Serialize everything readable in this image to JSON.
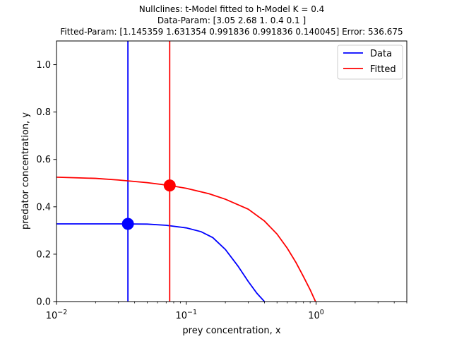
{
  "chart_data": {
    "type": "line",
    "title_lines": [
      "Nullclines: t-Model fitted to h-Model K = 0.4",
      "Data-Param: [3.05 2.68 1.   0.4  0.1 ]",
      "Fitted-Param: [1.145359 1.631354 0.991836 0.991836 0.140045] Error: 536.675"
    ],
    "xlabel": "prey concentration, x",
    "ylabel": "predator concentration, y",
    "x_scale": "log",
    "xlim": [
      0.01,
      5.0
    ],
    "ylim": [
      0.0,
      1.1
    ],
    "x_ticks": [
      {
        "value": 0.01,
        "base": "10",
        "exp": "−2"
      },
      {
        "value": 0.1,
        "base": "10",
        "exp": "−1"
      },
      {
        "value": 1,
        "base": "10",
        "exp": "0"
      }
    ],
    "y_ticks": [
      {
        "value": 0.0,
        "label": "0.0"
      },
      {
        "value": 0.2,
        "label": "0.2"
      },
      {
        "value": 0.4,
        "label": "0.4"
      },
      {
        "value": 0.6,
        "label": "0.6"
      },
      {
        "value": 0.8,
        "label": "0.8"
      },
      {
        "value": 1.0,
        "label": "1.0"
      }
    ],
    "legend_position": "top-right",
    "series": [
      {
        "name": "Data",
        "color": "#0000ff",
        "vertical_nullcline_x": 0.0355,
        "curve": [
          [
            0.01,
            0.328
          ],
          [
            0.02,
            0.328
          ],
          [
            0.03,
            0.328
          ],
          [
            0.05,
            0.327
          ],
          [
            0.07,
            0.322
          ],
          [
            0.1,
            0.311
          ],
          [
            0.13,
            0.295
          ],
          [
            0.16,
            0.27
          ],
          [
            0.2,
            0.22
          ],
          [
            0.25,
            0.15
          ],
          [
            0.3,
            0.085
          ],
          [
            0.35,
            0.035
          ],
          [
            0.4,
            0.0
          ]
        ],
        "equilibrium": [
          0.0355,
          0.328
        ]
      },
      {
        "name": "Fitted",
        "color": "#ff0000",
        "vertical_nullcline_x": 0.0745,
        "curve": [
          [
            0.01,
            0.525
          ],
          [
            0.02,
            0.52
          ],
          [
            0.03,
            0.513
          ],
          [
            0.05,
            0.502
          ],
          [
            0.0745,
            0.49
          ],
          [
            0.1,
            0.478
          ],
          [
            0.15,
            0.455
          ],
          [
            0.2,
            0.432
          ],
          [
            0.3,
            0.39
          ],
          [
            0.4,
            0.34
          ],
          [
            0.5,
            0.285
          ],
          [
            0.6,
            0.225
          ],
          [
            0.7,
            0.165
          ],
          [
            0.8,
            0.105
          ],
          [
            0.9,
            0.05
          ],
          [
            0.99,
            0.0
          ]
        ],
        "equilibrium": [
          0.0745,
          0.49
        ]
      }
    ]
  }
}
